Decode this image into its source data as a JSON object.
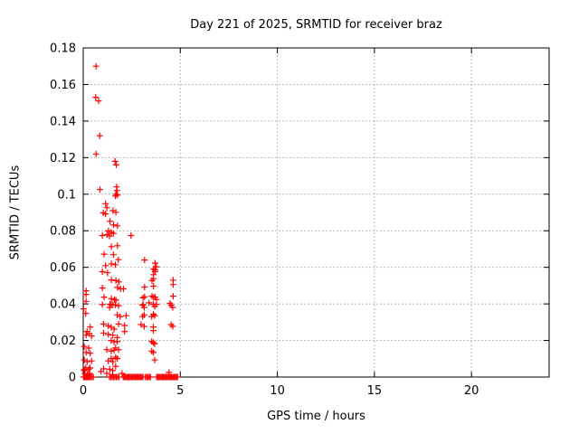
{
  "title": "Day 221 of 2025, SRMTID for receiver braz",
  "colors": {
    "marker": "#ff0000",
    "grid": "#b8b8b8",
    "axis": "#000000",
    "background": "#ffffff"
  },
  "chart_data": {
    "type": "scatter",
    "title": "Day 221 of 2025, SRMTID for receiver braz",
    "xlabel": "GPS time / hours",
    "ylabel": "SRMTID / TECUs",
    "xlim": [
      0,
      24
    ],
    "ylim": [
      0,
      0.18
    ],
    "xticks": [
      0,
      5,
      10,
      15,
      20
    ],
    "xtick_labels": [
      "0",
      "5",
      "10",
      "15",
      "20"
    ],
    "yticks": [
      0,
      0.02,
      0.04,
      0.06,
      0.08,
      0.1,
      0.12,
      0.14,
      0.16,
      0.18
    ],
    "ytick_labels": [
      "0",
      "0.02",
      "0.04",
      "0.06",
      "0.08",
      "0.1",
      "0.12",
      "0.14",
      "0.16",
      "0.18"
    ],
    "grid": true,
    "legend": false,
    "marker": {
      "shape": "plus",
      "color": "#ff0000",
      "size": 7
    },
    "series": [
      {
        "name": "SRMTID",
        "points": [
          [
            0.66,
            0.17
          ],
          [
            0.64,
            0.153
          ],
          [
            0.79,
            0.151
          ],
          [
            0.85,
            0.132
          ],
          [
            0.66,
            0.122
          ],
          [
            1.64,
            0.118
          ],
          [
            1.7,
            0.116
          ],
          [
            0.86,
            0.1025
          ],
          [
            1.72,
            0.104
          ],
          [
            1.74,
            0.102
          ],
          [
            1.68,
            0.1
          ],
          [
            1.76,
            0.0995
          ],
          [
            1.66,
            0.099
          ],
          [
            1.15,
            0.0948
          ],
          [
            1.22,
            0.0926
          ],
          [
            1.53,
            0.091
          ],
          [
            1.15,
            0.0892
          ],
          [
            1.03,
            0.0898
          ],
          [
            1.68,
            0.0901
          ],
          [
            1.38,
            0.0852
          ],
          [
            1.56,
            0.0832
          ],
          [
            1.76,
            0.0827
          ],
          [
            1.3,
            0.0799
          ],
          [
            1.45,
            0.0791
          ],
          [
            1.56,
            0.0786
          ],
          [
            0.99,
            0.0774
          ],
          [
            1.22,
            0.0779
          ],
          [
            1.35,
            0.0771
          ],
          [
            2.46,
            0.0774
          ],
          [
            1.45,
            0.0713
          ],
          [
            1.76,
            0.0718
          ],
          [
            1.07,
            0.0672
          ],
          [
            1.56,
            0.0669
          ],
          [
            1.81,
            0.0642
          ],
          [
            1.15,
            0.0609
          ],
          [
            1.45,
            0.0619
          ],
          [
            1.66,
            0.0614
          ],
          [
            0.99,
            0.0576
          ],
          [
            1.25,
            0.057
          ],
          [
            1.45,
            0.0531
          ],
          [
            1.68,
            0.0527
          ],
          [
            1.84,
            0.052
          ],
          [
            0.99,
            0.0487
          ],
          [
            1.76,
            0.049
          ],
          [
            1.92,
            0.0482
          ],
          [
            2.07,
            0.0482
          ],
          [
            1.07,
            0.0437
          ],
          [
            1.45,
            0.0428
          ],
          [
            1.61,
            0.0424
          ],
          [
            1.68,
            0.0421
          ],
          [
            0.99,
            0.0396
          ],
          [
            1.38,
            0.0398
          ],
          [
            1.45,
            0.0394
          ],
          [
            1.53,
            0.0396
          ],
          [
            1.66,
            0.0394
          ],
          [
            1.36,
            0.0381
          ],
          [
            0.15,
            0.0472
          ],
          [
            0.14,
            0.0452
          ],
          [
            0.15,
            0.0414
          ],
          [
            0.02,
            0.0373
          ],
          [
            0.13,
            0.0348
          ],
          [
            0.36,
            0.0274
          ],
          [
            0.2,
            0.0249
          ],
          [
            0.31,
            0.0238
          ],
          [
            0.15,
            0.0229
          ],
          [
            0.43,
            0.0224
          ],
          [
            0.05,
            0.0167
          ],
          [
            0.28,
            0.0158
          ],
          [
            0.15,
            0.0134
          ],
          [
            0.36,
            0.013
          ],
          [
            0.05,
            0.0093
          ],
          [
            0.43,
            0.0088
          ],
          [
            0.2,
            0.0084
          ],
          [
            0.13,
            0.0051
          ],
          [
            0.28,
            0.0043
          ],
          [
            0.05,
            0.0035
          ],
          [
            0.1,
            0.0018
          ],
          [
            0.22,
            0.0015
          ],
          [
            0.33,
            0.002
          ],
          [
            1.05,
            0.029
          ],
          [
            1.29,
            0.028
          ],
          [
            1.44,
            0.0272
          ],
          [
            1.59,
            0.0262
          ],
          [
            1.05,
            0.0241
          ],
          [
            1.29,
            0.0233
          ],
          [
            1.52,
            0.0229
          ],
          [
            1.44,
            0.02
          ],
          [
            1.59,
            0.0192
          ],
          [
            1.21,
            0.015
          ],
          [
            1.44,
            0.0142
          ],
          [
            1.59,
            0.0147
          ],
          [
            1.44,
            0.0101
          ],
          [
            1.29,
            0.0088
          ],
          [
            1.52,
            0.0084
          ],
          [
            1.36,
            0.0043
          ],
          [
            1.52,
            0.0035
          ],
          [
            1.52,
            0.0012
          ],
          [
            1.21,
            0.002
          ],
          [
            1.82,
            0.039
          ],
          [
            3.06,
            0.0393
          ],
          [
            3.14,
            0.0381
          ],
          [
            3.61,
            0.0398
          ],
          [
            3.68,
            0.0386
          ],
          [
            4.53,
            0.0393
          ],
          [
            4.61,
            0.0381
          ],
          [
            1.75,
            0.034
          ],
          [
            1.9,
            0.0331
          ],
          [
            2.21,
            0.0336
          ],
          [
            3.06,
            0.0331
          ],
          [
            3.14,
            0.034
          ],
          [
            3.53,
            0.0331
          ],
          [
            3.61,
            0.0343
          ],
          [
            3.68,
            0.0336
          ],
          [
            1.82,
            0.029
          ],
          [
            2.13,
            0.0282
          ],
          [
            2.98,
            0.0287
          ],
          [
            3.14,
            0.0277
          ],
          [
            3.61,
            0.0274
          ],
          [
            4.53,
            0.0287
          ],
          [
            4.61,
            0.0277
          ],
          [
            2.13,
            0.0249
          ],
          [
            3.61,
            0.0254
          ],
          [
            1.75,
            0.0216
          ],
          [
            1.75,
            0.0195
          ],
          [
            3.53,
            0.0195
          ],
          [
            3.61,
            0.0188
          ],
          [
            3.68,
            0.0182
          ],
          [
            1.67,
            0.0159
          ],
          [
            1.82,
            0.015
          ],
          [
            3.53,
            0.0142
          ],
          [
            3.61,
            0.0134
          ],
          [
            1.67,
            0.0109
          ],
          [
            1.75,
            0.0101
          ],
          [
            3.68,
            0.0093
          ],
          [
            1.67,
            0.0059
          ],
          [
            3.16,
            0.064
          ],
          [
            3.7,
            0.0623
          ],
          [
            3.77,
            0.0603
          ],
          [
            3.62,
            0.0591
          ],
          [
            3.7,
            0.0585
          ],
          [
            3.7,
            0.0576
          ],
          [
            3.62,
            0.056
          ],
          [
            3.62,
            0.0538
          ],
          [
            3.54,
            0.0527
          ],
          [
            4.63,
            0.053
          ],
          [
            3.16,
            0.0492
          ],
          [
            3.62,
            0.0497
          ],
          [
            4.63,
            0.0506
          ],
          [
            3.08,
            0.0433
          ],
          [
            3.7,
            0.0437
          ],
          [
            3.77,
            0.0424
          ],
          [
            4.63,
            0.0442
          ],
          [
            3.16,
            0.0439
          ],
          [
            3.54,
            0.0442
          ],
          [
            3.62,
            0.0436
          ],
          [
            3.39,
            0.0406
          ],
          [
            4.47,
            0.0403
          ],
          [
            3.08,
            0.0396
          ],
          [
            3.77,
            0.0398
          ],
          [
            0.06,
            0.004
          ],
          [
            0.35,
            0.005
          ],
          [
            0.92,
            0.003
          ],
          [
            1.05,
            0.0045
          ],
          [
            2.0,
            0.002
          ],
          [
            4.42,
            0.0025
          ],
          [
            0.02,
            0
          ],
          [
            0.07,
            0
          ],
          [
            0.12,
            0
          ],
          [
            0.17,
            0
          ],
          [
            0.22,
            0
          ],
          [
            0.27,
            0
          ],
          [
            0.32,
            0
          ],
          [
            0.38,
            0
          ],
          [
            0.45,
            0
          ],
          [
            0.52,
            0
          ],
          [
            1.35,
            0
          ],
          [
            1.42,
            0
          ],
          [
            1.49,
            0
          ],
          [
            1.56,
            0
          ],
          [
            1.63,
            0
          ],
          [
            1.7,
            0
          ],
          [
            1.77,
            0
          ],
          [
            1.84,
            0
          ],
          [
            2.06,
            0
          ],
          [
            2.12,
            0
          ],
          [
            2.18,
            0
          ],
          [
            2.24,
            0
          ],
          [
            2.3,
            0
          ],
          [
            2.36,
            0
          ],
          [
            2.42,
            0
          ],
          [
            2.48,
            0
          ],
          [
            2.54,
            0
          ],
          [
            2.6,
            0
          ],
          [
            2.66,
            0
          ],
          [
            2.72,
            0
          ],
          [
            2.78,
            0
          ],
          [
            2.84,
            0
          ],
          [
            2.9,
            0
          ],
          [
            2.96,
            0
          ],
          [
            3.02,
            0
          ],
          [
            3.08,
            0
          ],
          [
            3.2,
            0
          ],
          [
            3.27,
            0
          ],
          [
            3.33,
            0
          ],
          [
            3.4,
            0
          ],
          [
            3.46,
            0
          ],
          [
            3.78,
            0
          ],
          [
            3.84,
            0
          ],
          [
            3.9,
            0
          ],
          [
            3.96,
            0
          ],
          [
            4.02,
            0
          ],
          [
            4.08,
            0
          ],
          [
            4.14,
            0
          ],
          [
            4.2,
            0
          ],
          [
            4.26,
            0
          ],
          [
            4.32,
            0
          ],
          [
            4.38,
            0
          ],
          [
            4.44,
            0
          ],
          [
            4.5,
            0
          ],
          [
            4.56,
            0
          ],
          [
            4.62,
            0
          ],
          [
            4.68,
            0
          ],
          [
            4.74,
            0
          ],
          [
            4.8,
            0
          ],
          [
            4.86,
            0
          ]
        ]
      }
    ]
  }
}
